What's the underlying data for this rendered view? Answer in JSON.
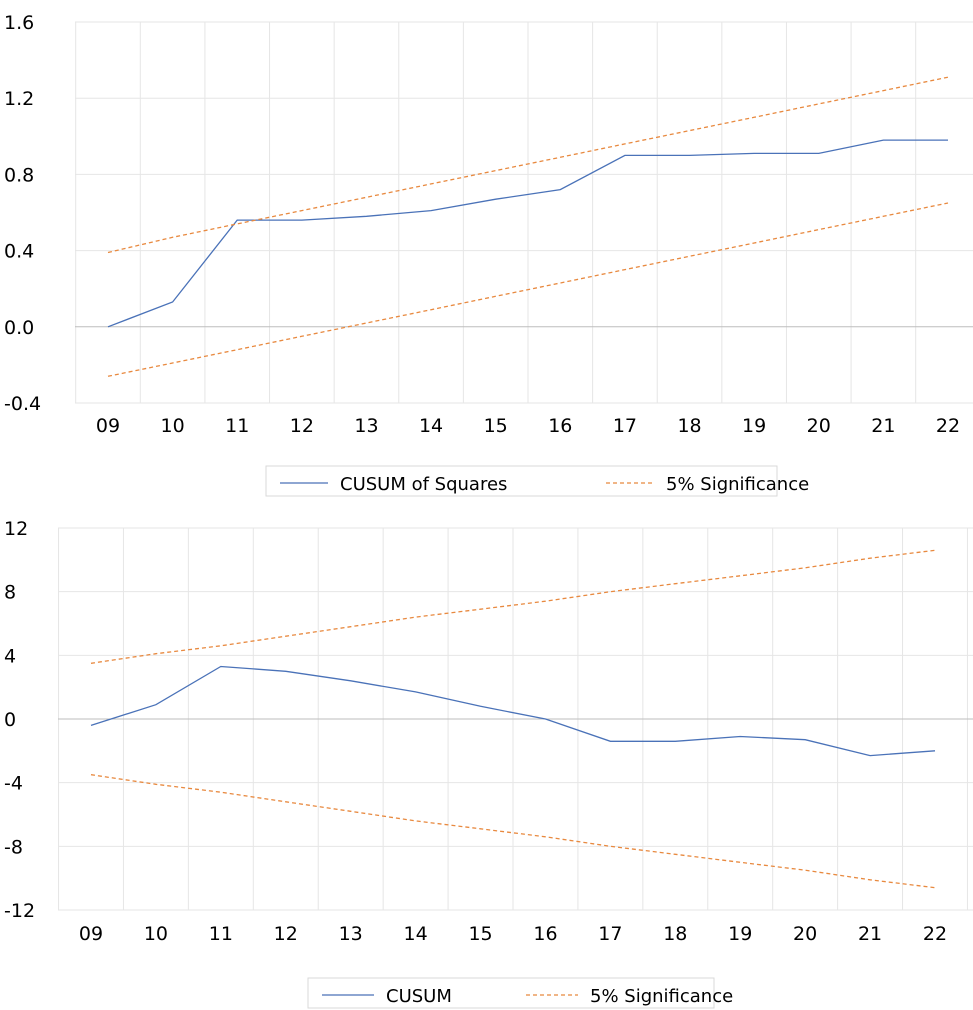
{
  "chart_data": [
    {
      "type": "line",
      "title": "",
      "xlabel": "",
      "ylabel": "",
      "categories": [
        "09",
        "10",
        "11",
        "12",
        "13",
        "14",
        "15",
        "16",
        "17",
        "18",
        "19",
        "20",
        "21",
        "22"
      ],
      "ylim": [
        -0.4,
        1.6
      ],
      "yticks": [
        "1.6",
        "1.2",
        "0.8",
        "0.4",
        "0.0",
        "-0.4"
      ],
      "ytick_values": [
        1.6,
        1.2,
        0.8,
        0.4,
        0.0,
        -0.4
      ],
      "grid": true,
      "legend_position": "bottom",
      "series": [
        {
          "name": "CUSUM of Squares",
          "style": "solid",
          "color": "#4a72b8",
          "values": [
            0.0,
            0.13,
            0.56,
            0.56,
            0.58,
            0.61,
            0.67,
            0.72,
            0.9,
            0.9,
            0.91,
            0.91,
            0.98,
            0.98
          ]
        },
        {
          "name": "5% Significance",
          "style": "dashed",
          "color": "#e8893f",
          "values": [
            0.39,
            0.47,
            0.54,
            0.61,
            0.68,
            0.75,
            0.82,
            0.89,
            0.96,
            1.03,
            1.1,
            1.17,
            1.24,
            1.31
          ]
        },
        {
          "name": "",
          "style": "dashed",
          "color": "#e8893f",
          "values": [
            -0.26,
            -0.19,
            -0.12,
            -0.05,
            0.02,
            0.09,
            0.16,
            0.23,
            0.3,
            0.37,
            0.44,
            0.51,
            0.58,
            0.65
          ]
        }
      ],
      "legend": [
        {
          "label": "CUSUM of Squares",
          "style": "solid",
          "color": "#4a72b8"
        },
        {
          "label": "5% Significance",
          "style": "dashed",
          "color": "#e8893f"
        }
      ]
    },
    {
      "type": "line",
      "title": "",
      "xlabel": "",
      "ylabel": "",
      "categories": [
        "09",
        "10",
        "11",
        "12",
        "13",
        "14",
        "15",
        "16",
        "17",
        "18",
        "19",
        "20",
        "21",
        "22"
      ],
      "ylim": [
        -12,
        12
      ],
      "yticks": [
        "12",
        "8",
        "4",
        "0",
        "-4",
        "-8",
        "-12"
      ],
      "ytick_values": [
        12,
        8,
        4,
        0,
        -4,
        -8,
        -12
      ],
      "grid": true,
      "legend_position": "bottom",
      "series": [
        {
          "name": "CUSUM",
          "style": "solid",
          "color": "#4a72b8",
          "values": [
            -0.4,
            0.9,
            3.3,
            3.0,
            2.4,
            1.7,
            0.8,
            0.0,
            -1.4,
            -1.4,
            -1.1,
            -1.3,
            -2.3,
            -2.0
          ]
        },
        {
          "name": "5% Significance",
          "style": "dashed",
          "color": "#e8893f",
          "values": [
            3.5,
            4.1,
            4.6,
            5.2,
            5.8,
            6.4,
            6.9,
            7.4,
            8.0,
            8.5,
            9.0,
            9.5,
            10.1,
            10.6
          ]
        },
        {
          "name": "",
          "style": "dashed",
          "color": "#e8893f",
          "values": [
            -3.5,
            -4.1,
            -4.6,
            -5.2,
            -5.8,
            -6.4,
            -6.9,
            -7.4,
            -8.0,
            -8.5,
            -9.0,
            -9.5,
            -10.1,
            -10.6
          ]
        }
      ],
      "legend": [
        {
          "label": "CUSUM",
          "style": "solid",
          "color": "#4a72b8"
        },
        {
          "label": "5% Significance",
          "style": "dashed",
          "color": "#e8893f"
        }
      ]
    }
  ]
}
